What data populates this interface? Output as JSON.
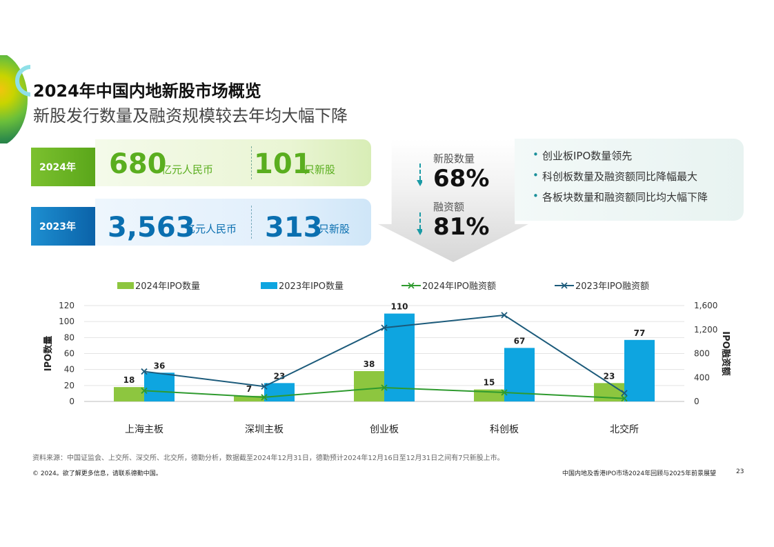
{
  "header": {
    "title": "2024年中国内地新股市场概览",
    "subtitle": "新股发行数量及融资规模较去年均大幅下降"
  },
  "stats": [
    {
      "year": "2024年",
      "amount": "680",
      "amount_unit": "亿元人民币",
      "count": "101",
      "count_unit": "只新股"
    },
    {
      "year": "2023年",
      "amount": "3,563",
      "amount_unit": "亿元人民币",
      "count": "313",
      "count_unit": "只新股"
    }
  ],
  "decline": {
    "count_label": "新股数量",
    "count_pct": "68%",
    "amount_label": "融资额",
    "amount_pct": "81%"
  },
  "bullets": [
    "创业板IPO数量领先",
    "科创板数量及融资额同比降幅最大",
    "各板块数量和融资额同比均大幅下降"
  ],
  "colors": {
    "green_bar": "#8dc63f",
    "blue_bar": "#0ea5e0",
    "green_line": "#2e9a2e",
    "navy_line": "#1b5a7a"
  },
  "chart_data": {
    "type": "bar",
    "categories": [
      "上海主板",
      "深圳主板",
      "创业板",
      "科创板",
      "北交所"
    ],
    "series": [
      {
        "name": "2024年IPO数量",
        "kind": "bar",
        "axis": "left",
        "values": [
          18,
          7,
          38,
          15,
          23
        ]
      },
      {
        "name": "2023年IPO数量",
        "kind": "bar",
        "axis": "left",
        "values": [
          36,
          23,
          110,
          67,
          77
        ]
      },
      {
        "name": "2024年IPO融资额",
        "kind": "line",
        "axis": "right",
        "values": [
          180,
          70,
          230,
          150,
          50
        ]
      },
      {
        "name": "2023年IPO融资额",
        "kind": "line",
        "axis": "right",
        "values": [
          500,
          250,
          1230,
          1440,
          140
        ]
      }
    ],
    "ylabel": "IPO数量",
    "ylabel_right": "IPO融资额",
    "ylim": [
      0,
      120
    ],
    "ylim_right": [
      0,
      1600
    ],
    "yticks": [
      "0",
      "20",
      "40",
      "60",
      "80",
      "100",
      "120"
    ],
    "yticks_right": [
      "0",
      "400",
      "800",
      "1,200",
      "1,600"
    ],
    "grid": true,
    "legend": "top"
  },
  "footer": {
    "source": "资料来源：中国证监会、上交所、深交所、北交所，德勤分析，数据截至2024年12月31日，德勤预计2024年12月16日至12月31日之间有7只新股上市。",
    "copyright": "© 2024。欲了解更多信息，请联系德勤中国。",
    "report_title": "中国内地及香港IPO市场2024年回顾与2025年前景展望",
    "page": "23"
  }
}
